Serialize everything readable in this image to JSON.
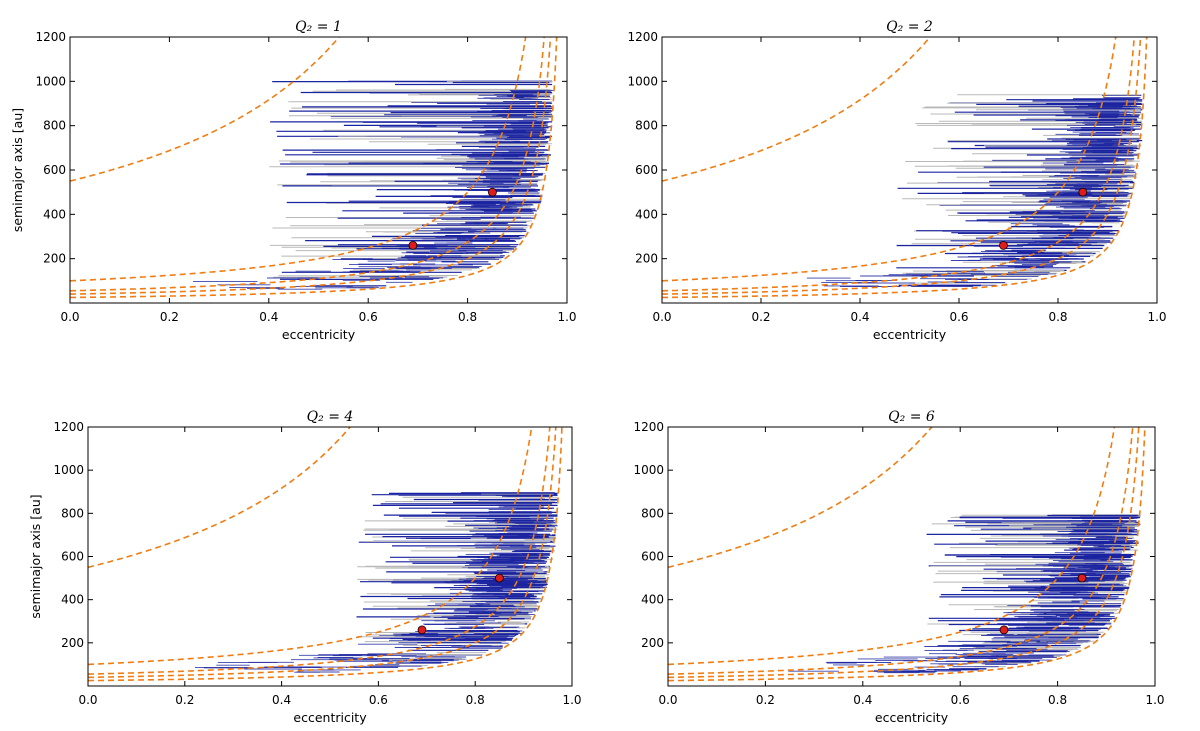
{
  "colors": {
    "orbit_dark": "#1a23a0",
    "orbit_light": "#b8b8b8",
    "curve": "#f07d12",
    "marker": "#e01b1b",
    "axes": "#000000",
    "background": "#ffffff"
  },
  "chart_data": [
    {
      "type": "scatter",
      "title": "Q₂ = 1",
      "xlabel": "eccentricity",
      "ylabel": "semimajor axis [au]",
      "xlim": [
        0.0,
        1.0
      ],
      "ylim": [
        0,
        1200
      ],
      "xticks": [
        "0.0",
        "0.2",
        "0.4",
        "0.6",
        "0.8",
        "1.0"
      ],
      "yticks": [
        "200",
        "400",
        "600",
        "800",
        "1000",
        "1200"
      ],
      "grid": false,
      "curves_q": [
        25,
        40,
        55,
        100,
        550
      ],
      "markers": [
        {
          "x": 0.69,
          "y": 260
        },
        {
          "x": 0.85,
          "y": 500
        }
      ],
      "spread": [
        0.55,
        1000
      ]
    },
    {
      "type": "scatter",
      "title": "Q₂ = 2",
      "xlabel": "eccentricity",
      "ylabel": "",
      "xlim": [
        0.0,
        1.0
      ],
      "ylim": [
        0,
        1200
      ],
      "xticks": [
        "0.0",
        "0.2",
        "0.4",
        "0.6",
        "0.8",
        "1.0"
      ],
      "yticks": [
        "200",
        "400",
        "600",
        "800",
        "1000",
        "1200"
      ],
      "grid": false,
      "curves_q": [
        25,
        40,
        55,
        100,
        550
      ],
      "markers": [
        {
          "x": 0.69,
          "y": 260
        },
        {
          "x": 0.85,
          "y": 500
        }
      ],
      "spread": [
        0.62,
        940
      ]
    },
    {
      "type": "scatter",
      "title": "Q₂ = 4",
      "xlabel": "eccentricity",
      "ylabel": "semimajor axis [au]",
      "xlim": [
        0.0,
        1.0
      ],
      "ylim": [
        0,
        1200
      ],
      "xticks": [
        "0.0",
        "0.2",
        "0.4",
        "0.6",
        "0.8",
        "1.0"
      ],
      "yticks": [
        "200",
        "400",
        "600",
        "800",
        "1000",
        "1200"
      ],
      "grid": false,
      "curves_q": [
        25,
        40,
        55,
        100,
        550
      ],
      "markers": [
        {
          "x": 0.69,
          "y": 260
        },
        {
          "x": 0.85,
          "y": 500
        }
      ],
      "spread": [
        0.7,
        900
      ]
    },
    {
      "type": "scatter",
      "title": "Q₂ = 6",
      "xlabel": "eccentricity",
      "ylabel": "",
      "xlim": [
        0.0,
        1.0
      ],
      "ylim": [
        0,
        1200
      ],
      "xticks": [
        "0.0",
        "0.2",
        "0.4",
        "0.6",
        "0.8",
        "1.0"
      ],
      "yticks": [
        "200",
        "400",
        "600",
        "800",
        "1000",
        "1200"
      ],
      "grid": false,
      "curves_q": [
        25,
        40,
        55,
        100,
        550
      ],
      "markers": [
        {
          "x": 0.69,
          "y": 260
        },
        {
          "x": 0.85,
          "y": 500
        }
      ],
      "spread": [
        0.68,
        800
      ]
    }
  ]
}
